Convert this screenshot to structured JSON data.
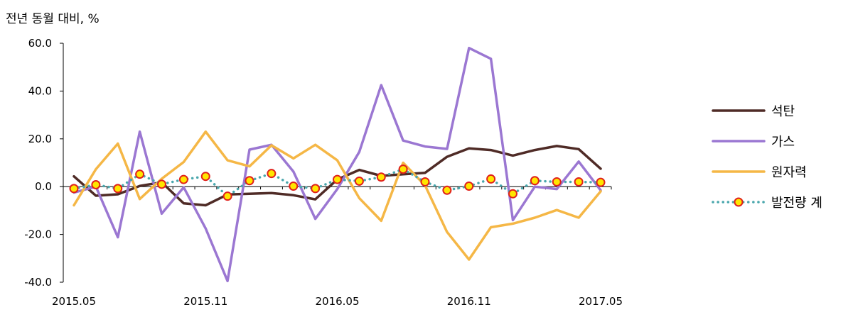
{
  "chart_data": {
    "type": "line",
    "ylabel": "전년 동월 대비, %",
    "ylim": [
      -40,
      60
    ],
    "yticks": [
      "60.0",
      "40.0",
      "20.0",
      "0.0",
      "-20.0",
      "-40.0"
    ],
    "ytick_values": [
      60,
      40,
      20,
      0,
      -20,
      -40
    ],
    "x": [
      "2015.05",
      "2015.06",
      "2015.07",
      "2015.08",
      "2015.09",
      "2015.10",
      "2015.11",
      "2015.12",
      "2016.01",
      "2016.02",
      "2016.03",
      "2016.04",
      "2016.05",
      "2016.06",
      "2016.07",
      "2016.08",
      "2016.09",
      "2016.10",
      "2016.11",
      "2016.12",
      "2017.01",
      "2017.02",
      "2017.03",
      "2017.04",
      "2017.05"
    ],
    "xtick_labels": [
      "2015.05",
      "2015.11",
      "2016.05",
      "2016.11",
      "2017.05"
    ],
    "legend_position": "right",
    "grid": false,
    "series": [
      {
        "name": "석탄",
        "color": "#4f2b26",
        "style": "solid",
        "values": [
          4.3,
          -3.8,
          -3.2,
          0.3,
          1.8,
          -7.0,
          -7.8,
          -3.3,
          -3.0,
          -2.7,
          -3.6,
          -5.3,
          3.0,
          7.0,
          4.5,
          5.2,
          5.8,
          12.5,
          16.0,
          15.3,
          13.0,
          15.3,
          17.0,
          15.7,
          7.5
        ]
      },
      {
        "name": "가스",
        "color": "#9b77d2",
        "style": "solid",
        "values": [
          -2.5,
          0.0,
          -21.2,
          23.0,
          -11.3,
          -0.3,
          -17.5,
          -39.5,
          15.5,
          17.5,
          6.3,
          -13.5,
          -1.0,
          14.5,
          42.5,
          19.3,
          16.8,
          15.8,
          58.0,
          53.5,
          -14.0,
          0.0,
          -1.0,
          10.5,
          -1.5
        ]
      },
      {
        "name": "원자력",
        "color": "#f5b746",
        "style": "solid",
        "values": [
          -7.8,
          7.3,
          18.0,
          -5.2,
          3.3,
          10.3,
          23.0,
          11.0,
          8.5,
          17.3,
          11.8,
          17.5,
          11.0,
          -4.8,
          -14.3,
          10.0,
          0.5,
          -19.0,
          -30.5,
          -17.0,
          -15.5,
          -13.0,
          -9.8,
          -13.0,
          -2.0
        ]
      },
      {
        "name": "발전량 계",
        "color": "#4aa7ad",
        "style": "dotted",
        "marker_fill": "#ffe600",
        "marker_edge": "#e0201b",
        "values": [
          -0.8,
          0.8,
          -0.8,
          5.2,
          1.0,
          3.0,
          4.3,
          -4.0,
          2.5,
          5.5,
          0.2,
          -0.8,
          3.0,
          2.3,
          4.0,
          7.3,
          2.0,
          -1.5,
          0.2,
          3.2,
          -3.0,
          2.5,
          2.0,
          2.0,
          1.8
        ]
      }
    ]
  }
}
